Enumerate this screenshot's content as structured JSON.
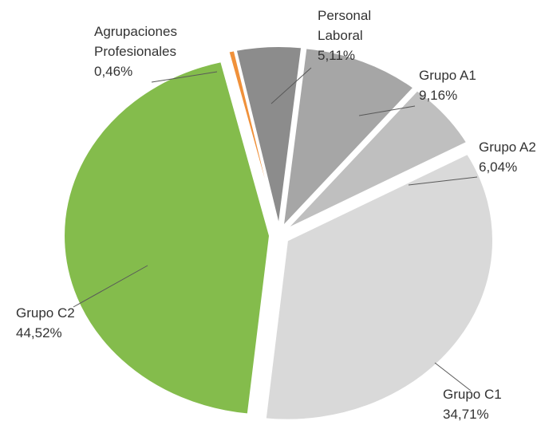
{
  "chart_data": {
    "type": "pie",
    "categories": [
      "Personal Laboral",
      "Grupo A1",
      "Grupo A2",
      "Grupo C1",
      "Grupo C2",
      "Agrupaciones Profesionales"
    ],
    "values": [
      5.11,
      9.16,
      6.04,
      34.71,
      44.52,
      0.46
    ],
    "value_labels": [
      "5,11%",
      "9,16%",
      "6,04%",
      "34,71%",
      "44,52%",
      "0,46%"
    ],
    "colors": [
      "#8c8c8c",
      "#a6a6a6",
      "#bfbfbf",
      "#d9d9d9",
      "#84bc4c",
      "#f0913a"
    ]
  }
}
